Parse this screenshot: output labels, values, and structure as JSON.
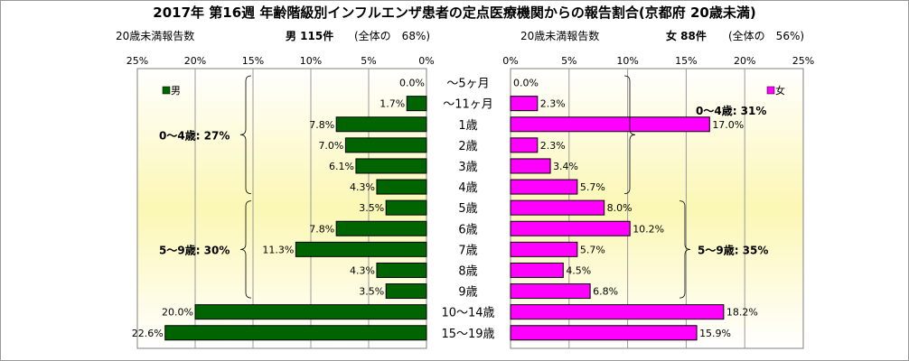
{
  "chart_data": {
    "type": "bar",
    "title": "2017年 第16週 年齢階級別インフルエンザ患者の定点医療機関からの報告割合(京都府 20歳未満)",
    "categories": [
      "～5ヶ月",
      "～11ヶ月",
      "1歳",
      "2歳",
      "3歳",
      "4歳",
      "5歳",
      "6歳",
      "7歳",
      "8歳",
      "9歳",
      "10～14歳",
      "15～19歳"
    ],
    "xlim": [
      0,
      25
    ],
    "xticks": [
      "25%",
      "20%",
      "15%",
      "10%",
      "5%",
      "0%"
    ],
    "xticks_right": [
      "0%",
      "5%",
      "10%",
      "15%",
      "20%",
      "25%"
    ],
    "series": [
      {
        "name": "男",
        "color": "#006400",
        "count_label": "男 115件",
        "share_label": "(全体の　68%)",
        "values": [
          0.0,
          1.7,
          7.8,
          7.0,
          6.1,
          4.3,
          3.5,
          7.8,
          11.3,
          4.3,
          3.5,
          20.0,
          22.6
        ],
        "value_labels": [
          "0.0%",
          "1.7%",
          "7.8%",
          "7.0%",
          "6.1%",
          "4.3%",
          "3.5%",
          "7.8%",
          "11.3%",
          "4.3%",
          "3.5%",
          "20.0%",
          "22.6%"
        ],
        "groups": [
          {
            "label": "0～4歳: 27%",
            "from": 0,
            "to": 5
          },
          {
            "label": "5～9歳: 30%",
            "from": 6,
            "to": 10
          }
        ]
      },
      {
        "name": "女",
        "color": "#ff00ff",
        "count_label": "女 88件",
        "share_label": "(全体の　56%)",
        "values": [
          0.0,
          2.3,
          17.0,
          2.3,
          3.4,
          5.7,
          8.0,
          10.2,
          5.7,
          4.5,
          6.8,
          18.2,
          15.9
        ],
        "value_labels": [
          "0.0%",
          "2.3%",
          "17.0%",
          "2.3%",
          "3.4%",
          "5.7%",
          "8.0%",
          "10.2%",
          "5.7%",
          "4.5%",
          "6.8%",
          "18.2%",
          "15.9%"
        ],
        "groups": [
          {
            "label": "0～4歳: 31%",
            "from": 0,
            "to": 5
          },
          {
            "label": "5～9歳: 35%",
            "from": 6,
            "to": 10
          }
        ]
      }
    ],
    "axis_caption_left": "20歳未満報告数",
    "axis_caption_right": "20歳未満報告数",
    "grid": true,
    "legend": "top-left / top-right"
  }
}
